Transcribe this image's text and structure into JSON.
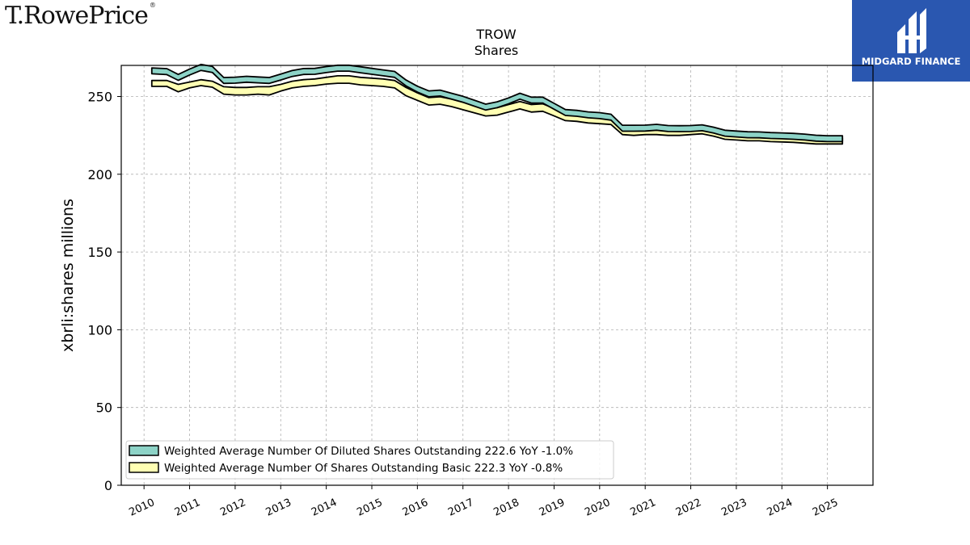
{
  "brand": {
    "left_logo_text": "T.RowePrice",
    "left_logo_mark": "®",
    "right_logo_text": "MIDGARD FINANCE"
  },
  "colors": {
    "diluted": "#8dd3c7",
    "basic": "#ffffb3",
    "brand_blue": "#2a57b0"
  },
  "chart_data": {
    "type": "area",
    "title": "TROW",
    "subtitle": "Shares",
    "ylabel": "xbrli:shares millions",
    "xlabel": "",
    "ylim": [
      0,
      270
    ],
    "xlim": [
      2009.5,
      2026.0
    ],
    "yticks": [
      0,
      50,
      100,
      150,
      200,
      250
    ],
    "xticks": [
      "2010",
      "2011",
      "2012",
      "2013",
      "2014",
      "2015",
      "2016",
      "2017",
      "2018",
      "2019",
      "2020",
      "2021",
      "2022",
      "2023",
      "2024",
      "2025"
    ],
    "grid": true,
    "legend_position": "lower-left",
    "series": [
      {
        "name": "Weighted Average Number Of Diluted Shares Outstanding",
        "legend_label": "Weighted Average Number Of Diluted Shares Outstanding  222.6 YoY -1.0%",
        "color": "#8dd3c7",
        "x": [
          2010.17,
          2010.5,
          2010.75,
          2011.0,
          2011.25,
          2011.5,
          2011.75,
          2012.0,
          2012.25,
          2012.5,
          2012.75,
          2013.0,
          2013.25,
          2013.5,
          2013.75,
          2014.0,
          2014.25,
          2014.5,
          2014.75,
          2015.0,
          2015.25,
          2015.5,
          2015.75,
          2016.0,
          2016.25,
          2016.5,
          2016.75,
          2017.0,
          2017.25,
          2017.5,
          2017.75,
          2018.0,
          2018.25,
          2018.5,
          2018.75,
          2019.0,
          2019.25,
          2019.5,
          2019.75,
          2020.0,
          2020.25,
          2020.5,
          2020.75,
          2021.0,
          2021.25,
          2021.5,
          2021.75,
          2022.0,
          2022.25,
          2022.5,
          2022.75,
          2023.0,
          2023.25,
          2023.5,
          2023.75,
          2024.0,
          2024.25,
          2024.5,
          2024.75,
          2025.0,
          2025.33
        ],
        "upper": [
          268.4,
          267.9,
          264.2,
          267.6,
          270.6,
          269.3,
          262.2,
          262.4,
          263.0,
          262.6,
          262.2,
          264.4,
          266.7,
          268.0,
          268.1,
          269.2,
          270.1,
          270.1,
          269.1,
          268.1,
          267.1,
          266.1,
          260.6,
          256.6,
          253.6,
          254.1,
          252.1,
          250.1,
          247.6,
          245.1,
          246.6,
          249.1,
          252.1,
          249.6,
          249.6,
          245.6,
          241.6,
          241.1,
          240.1,
          239.6,
          238.6,
          231.5,
          231.5,
          231.6,
          232.1,
          231.3,
          231.2,
          231.3,
          231.8,
          230.3,
          228.3,
          227.8,
          227.3,
          227.2,
          226.8,
          226.6,
          226.3,
          225.8,
          225.1,
          224.8,
          224.8
        ],
        "lower": [
          264.6,
          264.1,
          260.4,
          263.8,
          266.8,
          265.5,
          258.4,
          258.6,
          259.2,
          258.8,
          258.4,
          260.6,
          262.9,
          264.2,
          264.3,
          265.4,
          266.3,
          266.3,
          265.3,
          264.3,
          263.3,
          262.3,
          256.8,
          252.8,
          249.8,
          250.3,
          248.3,
          246.3,
          243.8,
          241.3,
          242.8,
          245.3,
          248.3,
          245.8,
          245.8,
          241.8,
          237.8,
          237.3,
          236.3,
          235.8,
          234.8,
          227.7,
          227.7,
          227.8,
          228.3,
          227.5,
          227.4,
          227.5,
          228.0,
          226.5,
          224.5,
          224.0,
          223.5,
          223.4,
          223.0,
          222.8,
          222.5,
          222.0,
          221.3,
          221.0,
          221.0
        ]
      },
      {
        "name": "Weighted Average Number Of Shares Outstanding Basic",
        "legend_label": "Weighted Average Number Of Shares Outstanding Basic  222.3 YoY -0.8%",
        "color": "#ffffb3",
        "x": [
          2010.17,
          2010.5,
          2010.75,
          2011.0,
          2011.25,
          2011.5,
          2011.75,
          2012.0,
          2012.25,
          2012.5,
          2012.75,
          2013.0,
          2013.25,
          2013.5,
          2013.75,
          2014.0,
          2014.25,
          2014.5,
          2014.75,
          2015.0,
          2015.25,
          2015.5,
          2015.75,
          2016.0,
          2016.25,
          2016.5,
          2016.75,
          2017.0,
          2017.25,
          2017.5,
          2017.75,
          2018.0,
          2018.25,
          2018.5,
          2018.75,
          2019.0,
          2019.25,
          2019.5,
          2019.75,
          2020.0,
          2020.25,
          2020.5,
          2020.75,
          2021.0,
          2021.25,
          2021.5,
          2021.75,
          2022.0,
          2022.25,
          2022.5,
          2022.75,
          2023.0,
          2023.25,
          2023.5,
          2023.75,
          2024.0,
          2024.25,
          2024.5,
          2024.75,
          2025.0,
          2025.33
        ],
        "upper": [
          260.3,
          260.3,
          257.8,
          259.3,
          260.8,
          259.8,
          256.3,
          255.8,
          255.8,
          256.3,
          256.3,
          257.8,
          259.8,
          260.8,
          261.3,
          262.3,
          263.3,
          263.3,
          262.3,
          261.8,
          261.3,
          260.3,
          255.8,
          252.3,
          249.3,
          249.8,
          248.3,
          246.3,
          244.3,
          242.3,
          242.8,
          244.8,
          246.8,
          244.8,
          245.3,
          242.3,
          238.8,
          238.3,
          237.3,
          236.8,
          236.3,
          229.3,
          228.8,
          229.3,
          229.3,
          228.8,
          228.8,
          229.3,
          229.8,
          228.3,
          226.3,
          225.8,
          225.3,
          225.3,
          224.8,
          224.6,
          224.3,
          223.8,
          223.3,
          223.3,
          223.3
        ],
        "lower": [
          256.5,
          256.5,
          253.0,
          255.5,
          257.0,
          256.0,
          251.5,
          251.0,
          251.0,
          251.5,
          251.0,
          253.5,
          255.5,
          256.5,
          257.0,
          258.0,
          258.5,
          258.5,
          257.5,
          257.0,
          256.5,
          255.5,
          250.5,
          247.5,
          244.5,
          245.0,
          243.5,
          241.5,
          239.5,
          237.5,
          238.0,
          240.0,
          242.0,
          240.0,
          240.5,
          237.5,
          234.5,
          234.0,
          233.0,
          232.5,
          232.0,
          225.5,
          225.0,
          225.5,
          225.5,
          225.0,
          225.0,
          225.5,
          226.0,
          224.5,
          222.5,
          222.0,
          221.5,
          221.5,
          221.0,
          220.8,
          220.5,
          220.0,
          219.5,
          219.5,
          219.5
        ]
      }
    ]
  }
}
